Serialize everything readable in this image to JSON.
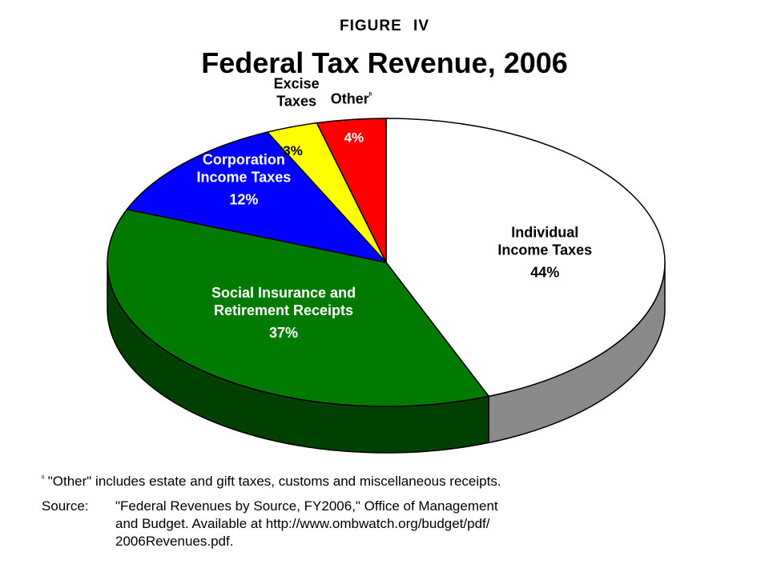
{
  "header": {
    "figure_label": "FIGURE IV",
    "title": "Federal Tax Revenue, 2006"
  },
  "chart_data": {
    "type": "pie",
    "three_d": true,
    "start_position": "12 o'clock",
    "direction": "clockwise",
    "slices": [
      {
        "label": "Individual Income Taxes",
        "label_lines": [
          "Individual",
          "Income Taxes"
        ],
        "value": 44,
        "value_label": "44%",
        "color": "#ffffff",
        "side_color": "#8a8a8a",
        "label_color": "#000000"
      },
      {
        "label": "Social Insurance and Retirement Receipts",
        "label_lines": [
          "Social Insurance and",
          "Retirement Receipts"
        ],
        "value": 37,
        "value_label": "37%",
        "color": "#007a00",
        "side_color": "#004000",
        "label_color": "#ffffff"
      },
      {
        "label": "Corporation Income Taxes",
        "label_lines": [
          "Corporation",
          "Income Taxes"
        ],
        "value": 12,
        "value_label": "12%",
        "color": "#0000ff",
        "side_color": "#000099",
        "label_color": "#ffffff"
      },
      {
        "label": "Excise Taxes",
        "label_lines": [
          "Excise",
          "Taxes"
        ],
        "value": 3,
        "value_label": "3%",
        "color": "#ffff00",
        "side_color": "#999900",
        "label_color": "#000000"
      },
      {
        "label": "Other",
        "label_lines": [
          "Other"
        ],
        "value": 4,
        "value_label": "4%",
        "color": "#ff0000",
        "side_color": "#990000",
        "label_color": "#ffffff",
        "footnote_mark": "ᴵᴵ"
      }
    ]
  },
  "footnote": {
    "mark": "ᴵᴵ",
    "text": "\"Other\" includes estate and gift taxes, customs and miscellaneous receipts."
  },
  "source": {
    "label": "Source:",
    "line1": "\"Federal Revenues by Source, FY2006,\" Office of Management",
    "line2": "and Budget.  Available at http://www.ombwatch.org/budget/pdf/",
    "line3": "2006Revenues.pdf."
  }
}
